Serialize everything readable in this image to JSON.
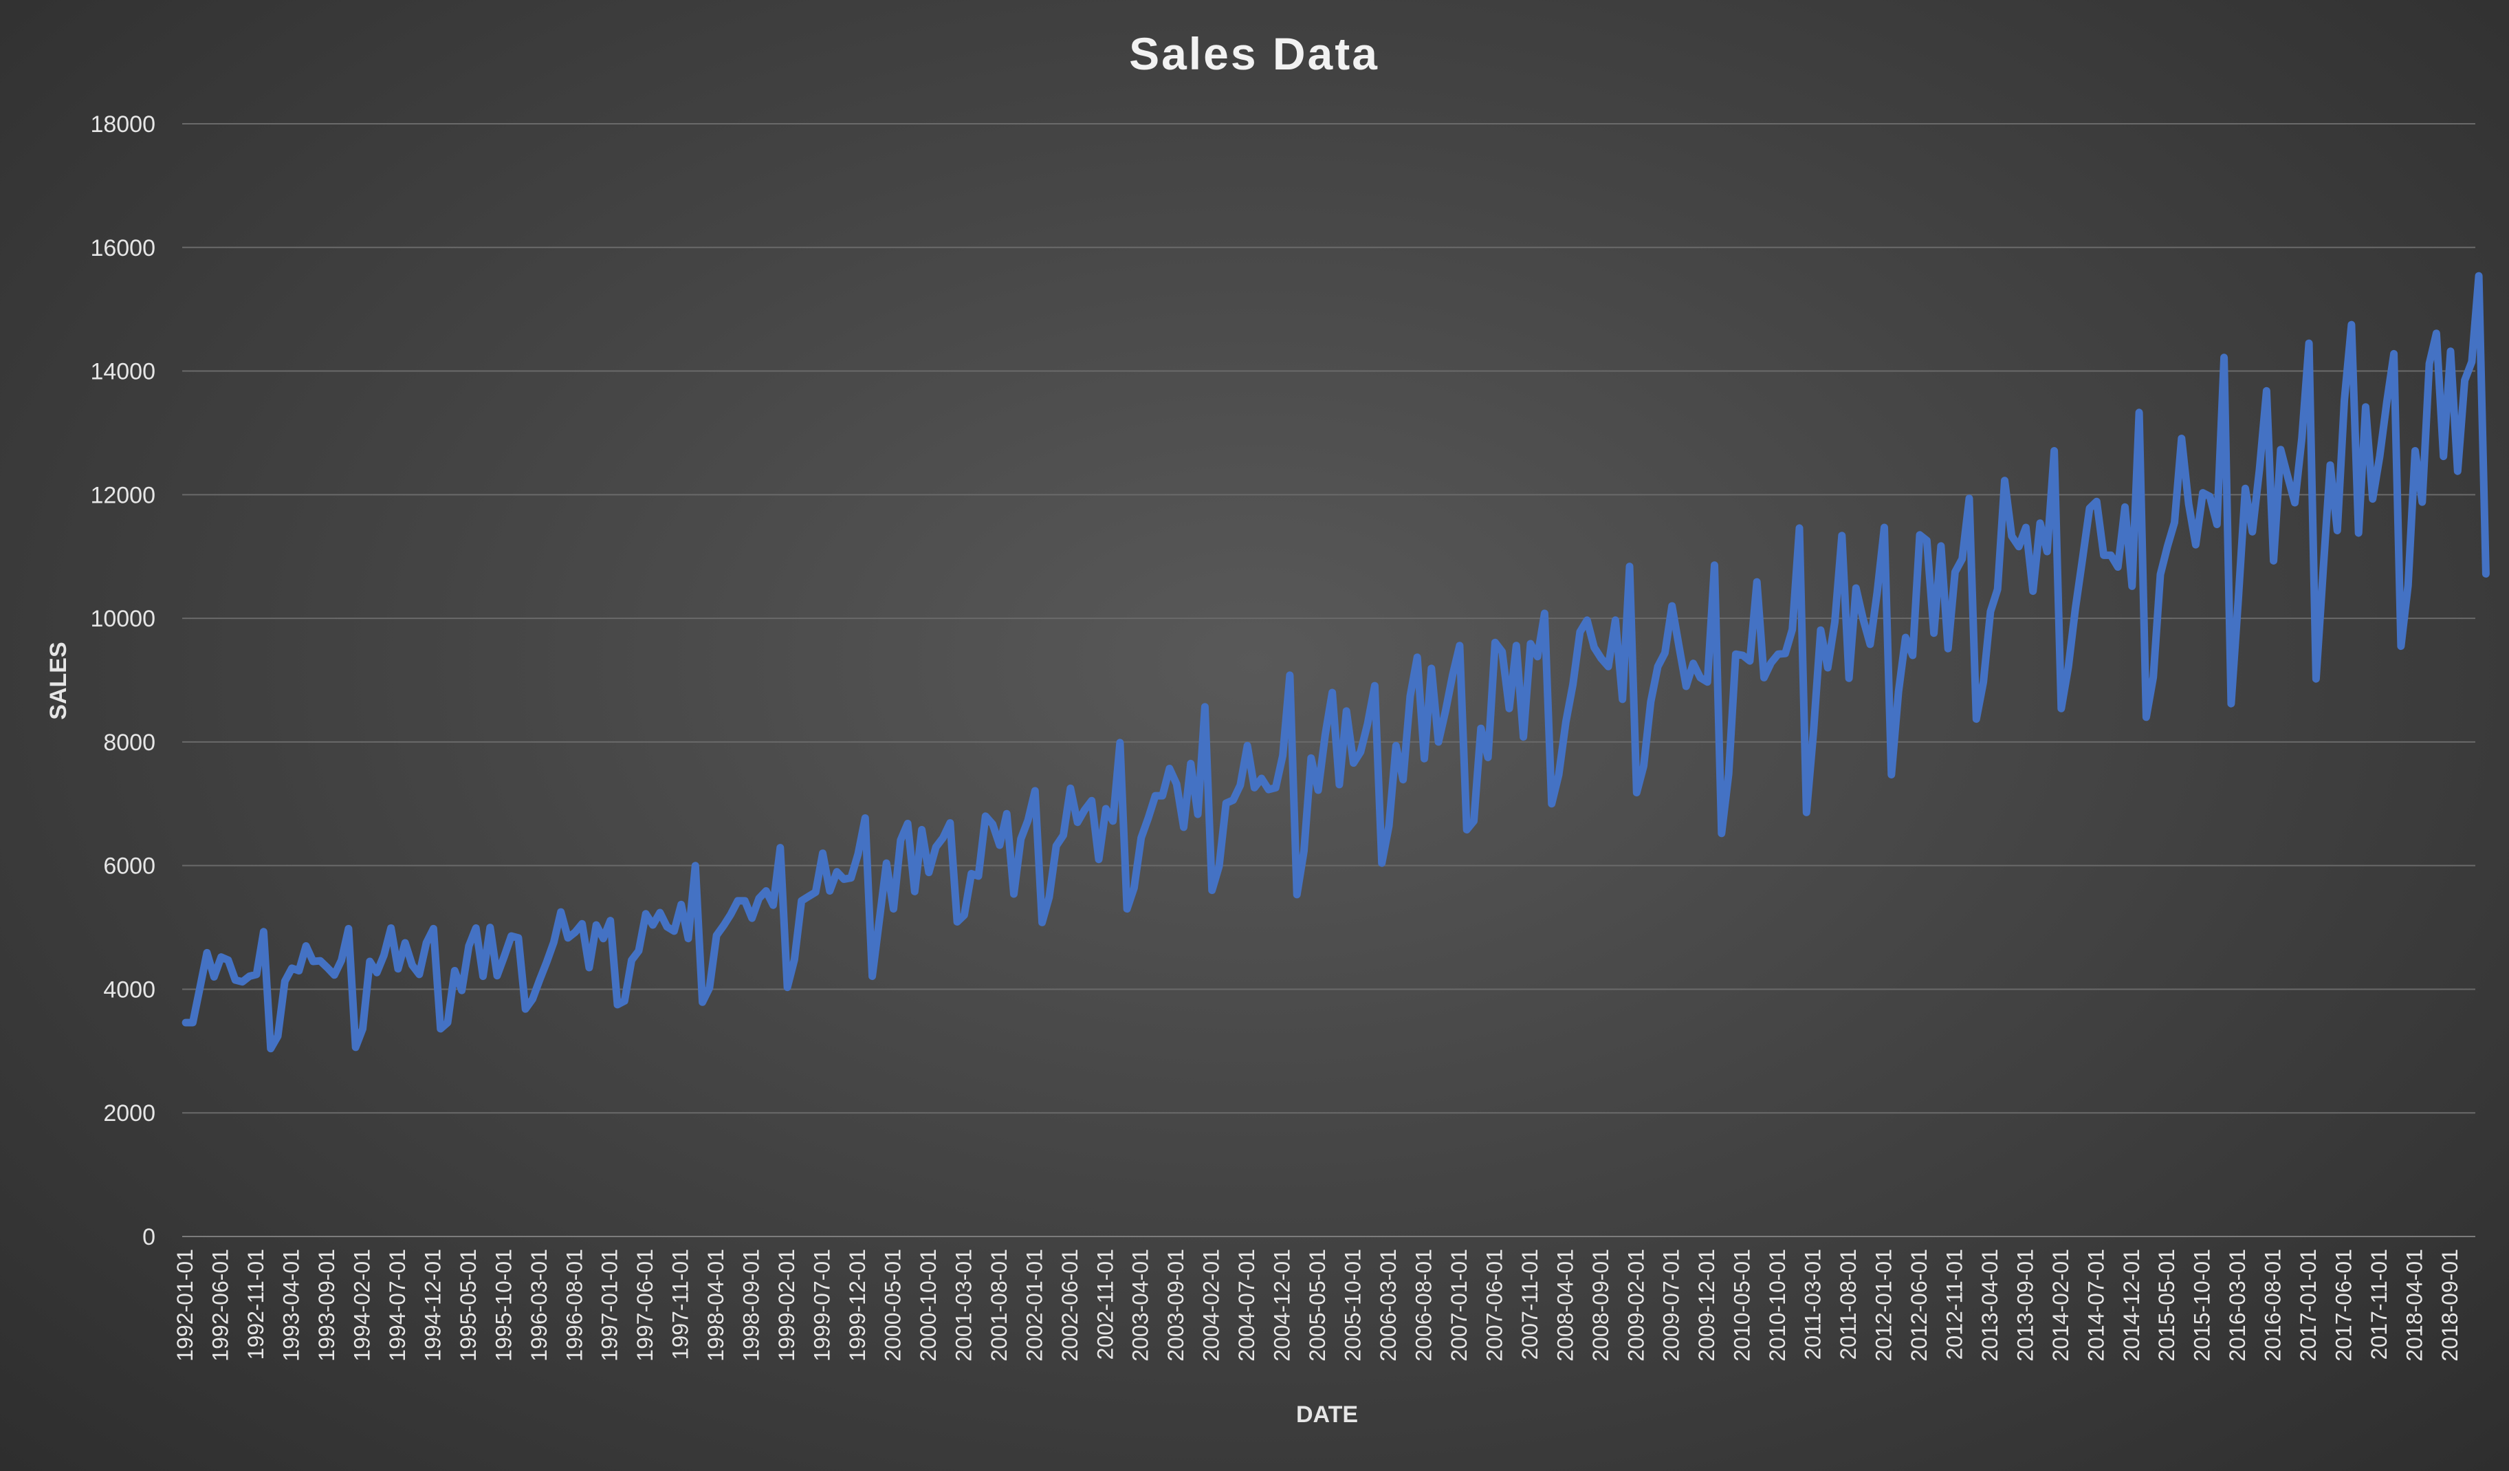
{
  "chart_data": {
    "type": "line",
    "title": "Sales Data",
    "xlabel": "DATE",
    "ylabel": "SALES",
    "ylim": [
      0,
      18000
    ],
    "yticks": [
      0,
      2000,
      4000,
      6000,
      8000,
      10000,
      12000,
      14000,
      16000,
      18000
    ],
    "ytick_labels": [
      "0",
      "2000",
      "4000",
      "6000",
      "8000",
      "10000",
      "12000",
      "14000",
      "16000",
      "18000"
    ],
    "grid": true,
    "legend": "none",
    "x_tick_labels": [
      "1992-01-01",
      "1992-06-01",
      "1992-11-01",
      "1993-04-01",
      "1993-09-01",
      "1994-02-01",
      "1994-07-01",
      "1994-12-01",
      "1995-05-01",
      "1995-10-01",
      "1996-03-01",
      "1996-08-01",
      "1997-01-01",
      "1997-06-01",
      "1997-11-01",
      "1998-04-01",
      "1998-09-01",
      "1999-02-01",
      "1999-07-01",
      "1999-12-01",
      "2000-05-01",
      "2000-10-01",
      "2001-03-01",
      "2001-08-01",
      "2002-01-01",
      "2002-06-01",
      "2002-11-01",
      "2003-04-01",
      "2003-09-01",
      "2004-02-01",
      "2004-07-01",
      "2004-12-01",
      "2005-05-01",
      "2005-10-01",
      "2006-03-01",
      "2006-08-01",
      "2007-01-01",
      "2007-06-01",
      "2007-11-01",
      "2008-04-01",
      "2008-09-01",
      "2009-02-01",
      "2009-07-01",
      "2009-12-01",
      "2010-05-01",
      "2010-10-01",
      "2011-03-01",
      "2011-08-01",
      "2012-01-01",
      "2012-06-01",
      "2012-11-01",
      "2013-04-01",
      "2013-09-01",
      "2014-02-01",
      "2014-07-01",
      "2014-12-01",
      "2015-05-01",
      "2015-10-01",
      "2016-03-01",
      "2016-08-01",
      "2017-01-01",
      "2017-06-01",
      "2017-11-01",
      "2018-04-01",
      "2018-09-01"
    ],
    "x_start": "1992-01-01",
    "x_end": "2019-01-01",
    "line_color": "#4472C4",
    "series": [
      {
        "values": [
          3460,
          3460,
          4020,
          4590,
          4200,
          4520,
          4470,
          4150,
          4120,
          4210,
          4240,
          4930,
          3040,
          3240,
          4130,
          4340,
          4300,
          4700,
          4450,
          4460,
          4350,
          4230,
          4470,
          4980,
          3060,
          3360,
          4450,
          4270,
          4550,
          4990,
          4330,
          4750,
          4390,
          4240,
          4750,
          4980,
          3360,
          3460,
          4300,
          3980,
          4700,
          4990,
          4210,
          5000,
          4220,
          4530,
          4860,
          4830,
          3680,
          3840,
          4150,
          4440,
          4760,
          5250,
          4830,
          4920,
          5060,
          4350,
          5040,
          4820,
          5110,
          3750,
          3810,
          4470,
          4620,
          5220,
          5040,
          5240,
          5010,
          4940,
          5370,
          4820,
          6000,
          3790,
          4020,
          4870,
          5030,
          5210,
          5430,
          5430,
          5150,
          5470,
          5590,
          5360,
          6290,
          4030,
          4480,
          5430,
          5500,
          5570,
          6200,
          5590,
          5900,
          5780,
          5800,
          6190,
          6770,
          4210,
          5120,
          6040,
          5300,
          6410,
          6680,
          5580,
          6580,
          5890,
          6300,
          6450,
          6690,
          5090,
          5200,
          5870,
          5830,
          6800,
          6670,
          6330,
          6840,
          5540,
          6430,
          6730,
          7210,
          5080,
          5490,
          6320,
          6490,
          7250,
          6700,
          6900,
          7050,
          6100,
          6920,
          6720,
          7990,
          5300,
          5640,
          6450,
          6770,
          7130,
          7130,
          7570,
          7320,
          6620,
          7650,
          6830,
          8570,
          5600,
          5990,
          7010,
          7060,
          7300,
          7940,
          7260,
          7410,
          7230,
          7260,
          7780,
          9080,
          5530,
          6240,
          7740,
          7220,
          8120,
          8800,
          7310,
          8500,
          7660,
          7840,
          8300,
          8910,
          6040,
          6640,
          7940,
          7390,
          8740,
          9370,
          7730,
          9190,
          8000,
          8500,
          9080,
          9560,
          6580,
          6720,
          8220,
          7750,
          9610,
          9460,
          8540,
          9560,
          8080,
          9590,
          9380,
          10080,
          7000,
          7470,
          8320,
          8930,
          9780,
          9970,
          9530,
          9350,
          9220,
          9970,
          8690,
          10840,
          7180,
          7610,
          8650,
          9220,
          9440,
          10200,
          9540,
          8900,
          9270,
          9040,
          8970,
          10860,
          6520,
          7480,
          9420,
          9400,
          9310,
          10590,
          9040,
          9280,
          9420,
          9430,
          9820,
          11460,
          6860,
          8180,
          9810,
          9200,
          9940,
          11340,
          9030,
          10490,
          9990,
          9580,
          10430,
          11470,
          7470,
          8810,
          9690,
          9400,
          11350,
          11260,
          9760,
          11170,
          9510,
          10750,
          10960,
          11940,
          8370,
          8970,
          10110,
          10470,
          12230,
          11330,
          11160,
          11470,
          10440,
          11540,
          11080,
          12710,
          8540,
          9210,
          10160,
          10960,
          11780,
          11890,
          11020,
          11020,
          10830,
          11800,
          10520,
          13330,
          8400,
          9050,
          10710,
          11160,
          11550,
          12910,
          11850,
          11190,
          12030,
          11970,
          11520,
          14220,
          8620,
          10290,
          12100,
          11400,
          12410,
          13680,
          10930,
          12730,
          12290,
          11870,
          12920,
          14450,
          9020,
          10770,
          12480,
          11420,
          13530,
          14750,
          11380,
          13420,
          11930,
          12620,
          13500,
          14280,
          9550,
          10530,
          12710,
          11880,
          14120,
          14610,
          12620,
          14320,
          12380,
          13850,
          14150,
          15540,
          10720
        ]
      }
    ]
  }
}
